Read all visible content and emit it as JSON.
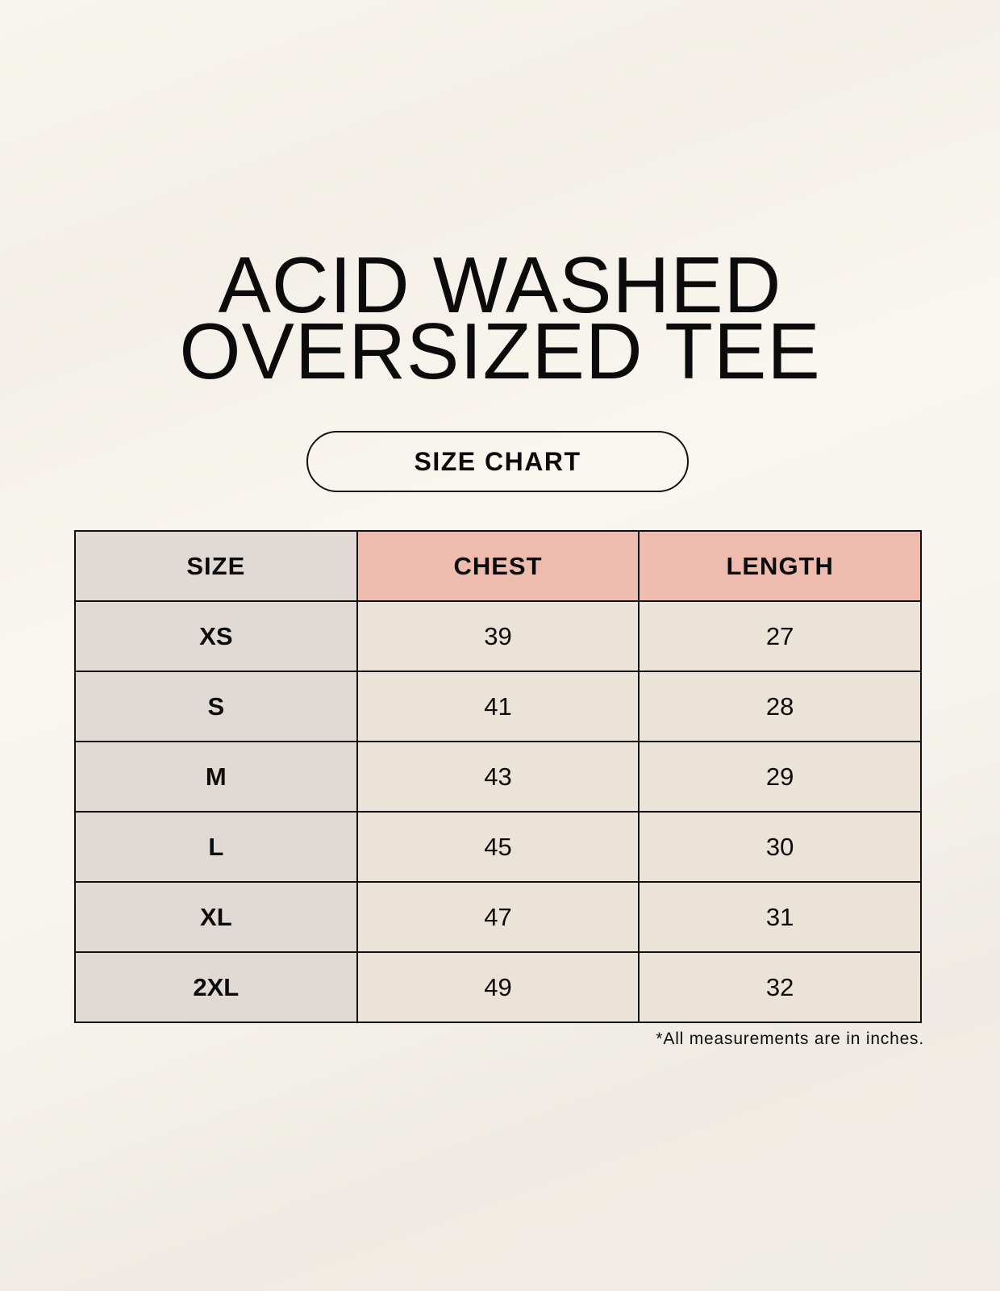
{
  "title": {
    "line1": "ACID WASHED",
    "line2": "OVERSIZED TEE"
  },
  "badge": "SIZE CHART",
  "table": {
    "headers": [
      "SIZE",
      "CHEST",
      "LENGTH"
    ],
    "rows": [
      [
        "XS",
        "39",
        "27"
      ],
      [
        "S",
        "41",
        "28"
      ],
      [
        "M",
        "43",
        "29"
      ],
      [
        "L",
        "45",
        "30"
      ],
      [
        "XL",
        "47",
        "31"
      ],
      [
        "2XL",
        "49",
        "32"
      ]
    ]
  },
  "footnote": "*All measurements are in inches.",
  "colors": {
    "size_column": "#e0d9d4",
    "header_highlight": "#edbcae",
    "value_cells": "#ebe2d8",
    "background": "#f8f5ee"
  }
}
